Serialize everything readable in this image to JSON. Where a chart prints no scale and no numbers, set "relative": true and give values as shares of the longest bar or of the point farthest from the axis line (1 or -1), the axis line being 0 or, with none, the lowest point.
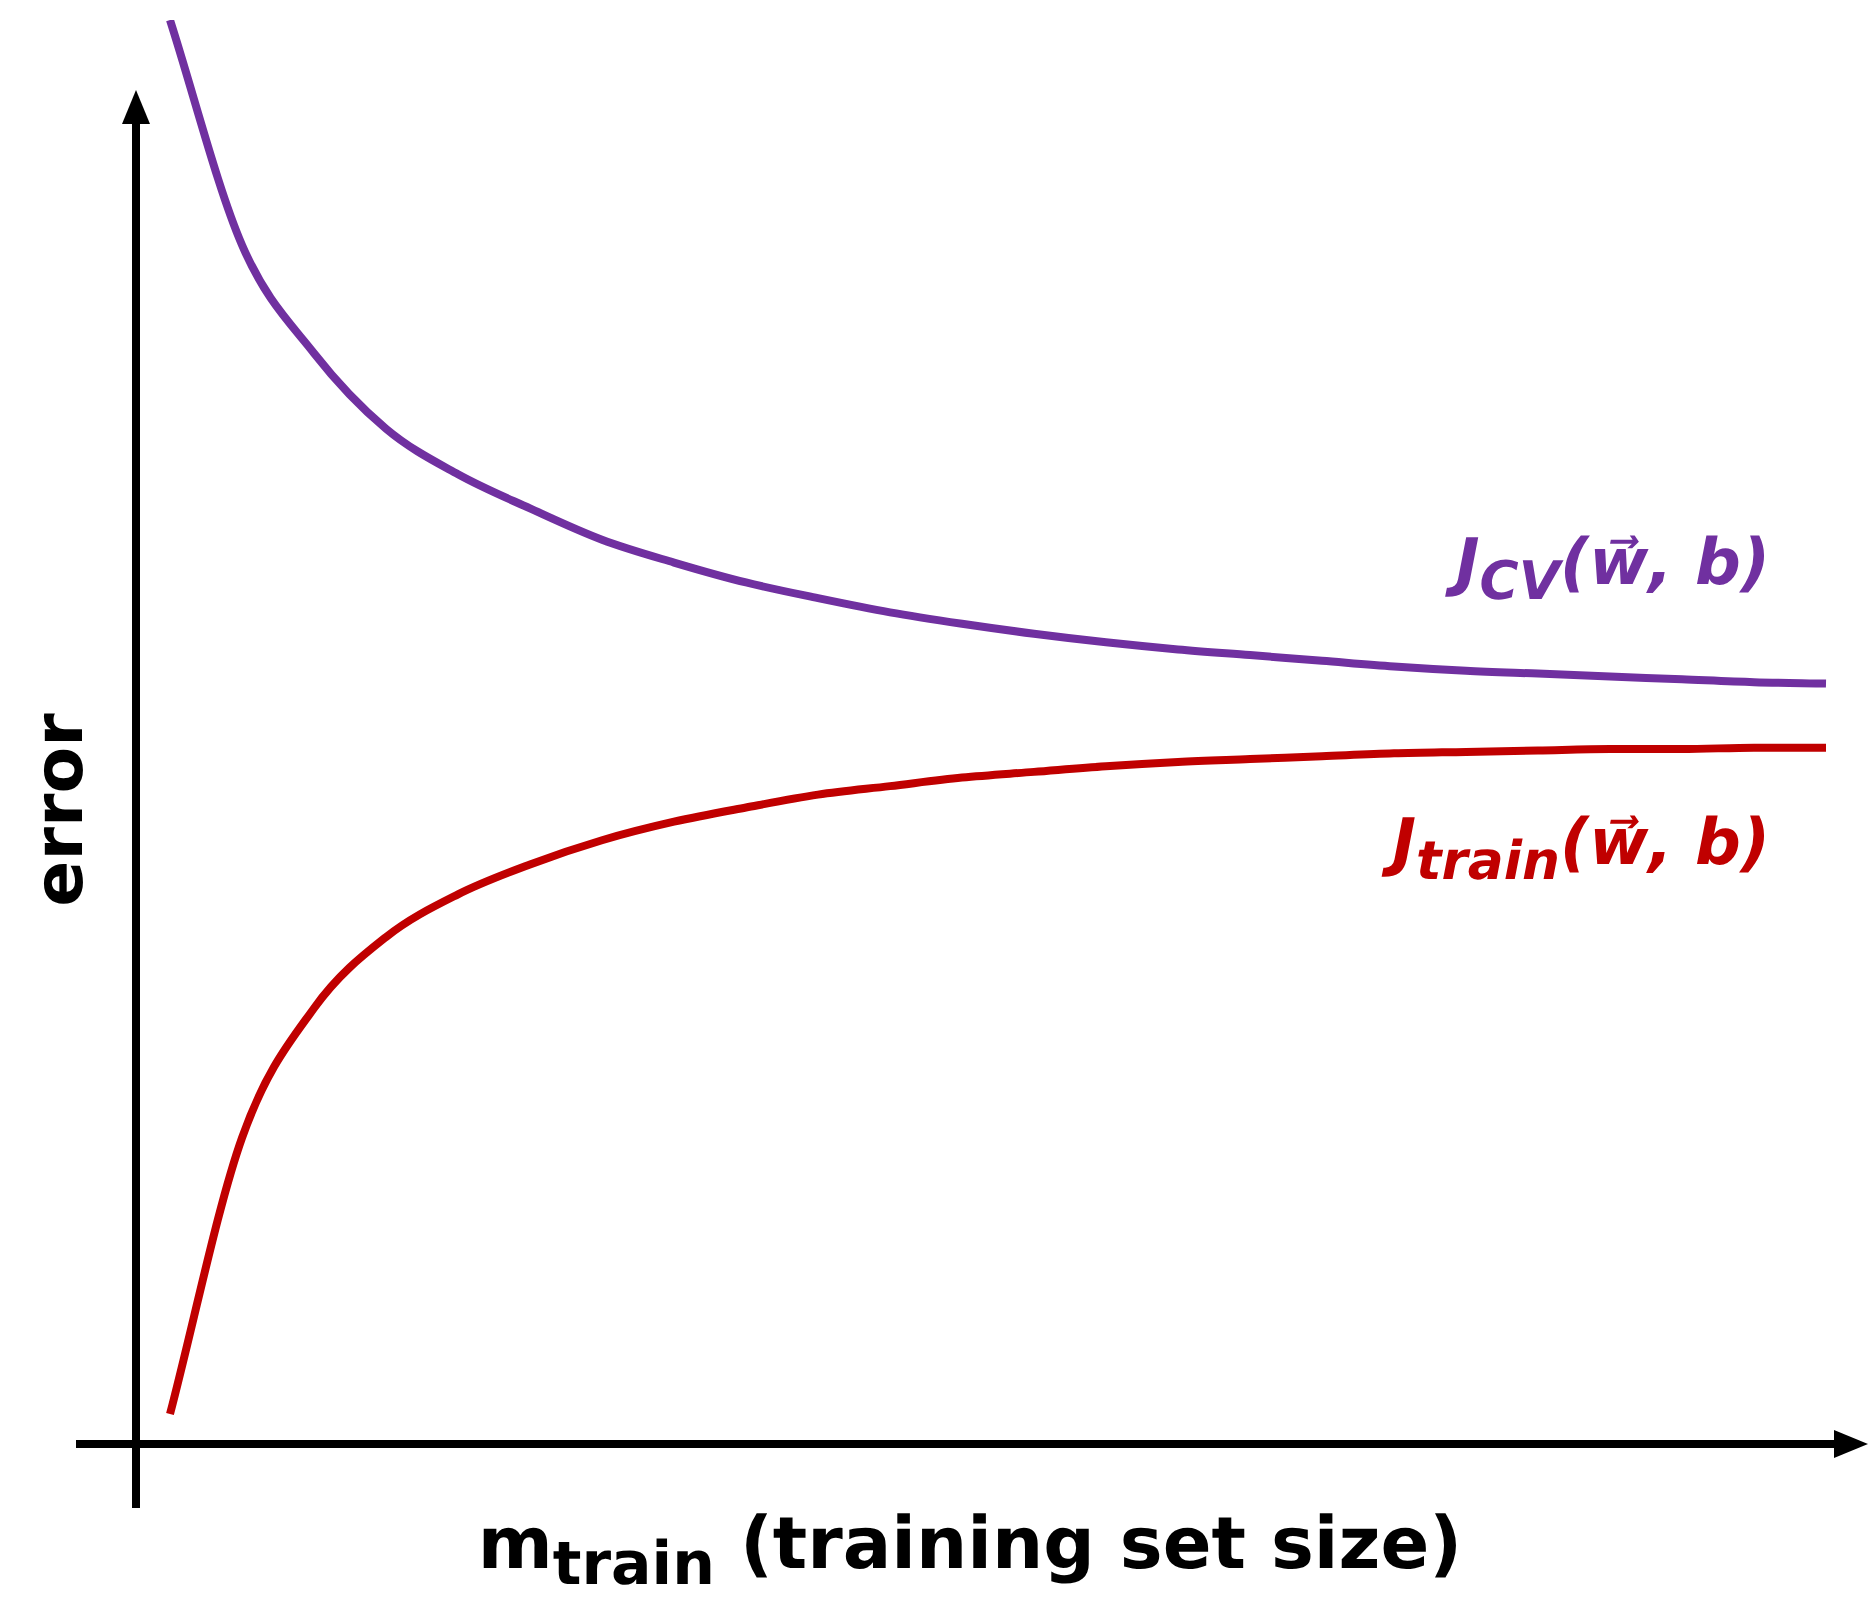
{
  "chart_data": {
    "type": "line",
    "relative": true,
    "xlabel": "m$_{train}$ (training set size)",
    "ylabel": "error",
    "categories": [
      null,
      null,
      null,
      null,
      null,
      null,
      null,
      null,
      null,
      null,
      null,
      null,
      null,
      null,
      null,
      null,
      null,
      null,
      null,
      null,
      null,
      null,
      null,
      null
    ],
    "legend": false,
    "marker": "none",
    "series": [
      {
        "name": "J$_{CV}$(w⃗, b)",
        "color": "#7030a0",
        "values": [
          1.0,
          0.842,
          0.766,
          0.713,
          0.681,
          0.657,
          0.635,
          0.619,
          0.605,
          0.594,
          0.584,
          0.576,
          0.569,
          0.563,
          0.558,
          0.554,
          0.55,
          0.546,
          0.543,
          0.541,
          0.539,
          0.537,
          0.535,
          0.534
        ]
      },
      {
        "name": "J$_{train}$(w⃗, b)",
        "color": "#c00000",
        "values": [
          0.021,
          0.215,
          0.306,
          0.356,
          0.386,
          0.407,
          0.424,
          0.437,
          0.447,
          0.456,
          0.462,
          0.468,
          0.472,
          0.476,
          0.479,
          0.481,
          0.483,
          0.485,
          0.486,
          0.487,
          0.488,
          0.488,
          0.489,
          0.489
        ]
      }
    ]
  }
}
